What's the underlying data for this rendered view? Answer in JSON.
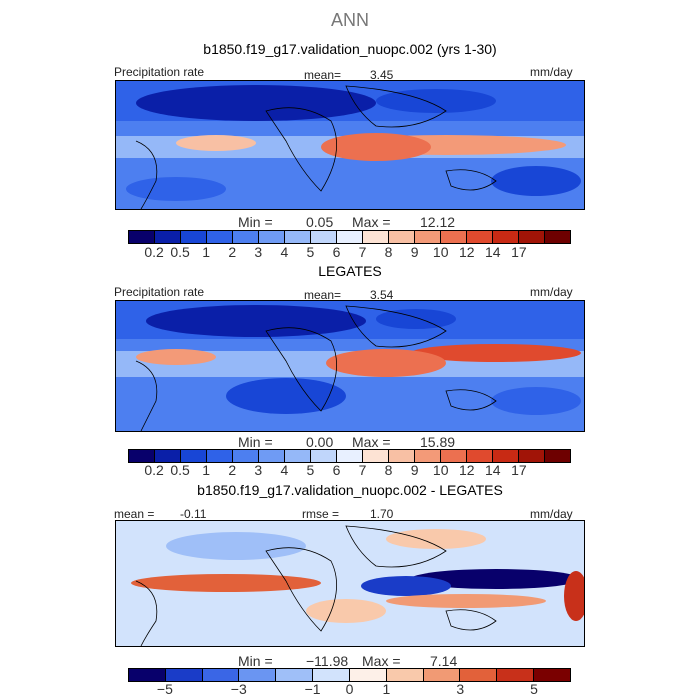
{
  "season": "ANN",
  "panels": [
    {
      "title": "b1850.f19_g17.validation_nuopc.002 (yrs 1-30)",
      "left_label": "Precipitation rate",
      "stat_label": "mean=",
      "stat_value": "3.45",
      "units": "mm/day",
      "min_label": "Min =",
      "min_value": "0.05",
      "max_label": "Max =",
      "max_value": "12.12"
    },
    {
      "title": "LEGATES",
      "left_label": "Precipitation rate",
      "stat_label": "mean=",
      "stat_value": "3.54",
      "units": "mm/day",
      "min_label": "Min =",
      "min_value": "0.00",
      "max_label": "Max =",
      "max_value": "15.89"
    },
    {
      "title": "b1850.f19_g17.validation_nuopc.002 - LEGATES",
      "mean_label": "mean =",
      "mean_value": "-0.11",
      "rmse_label": "rmse =",
      "rmse_value": "1.70",
      "units": "mm/day",
      "min_label": "Min =",
      "min_value": "−11.98",
      "max_label": "Max =",
      "max_value": "7.14"
    }
  ],
  "colorbar_abs": {
    "colors": [
      "#08006b",
      "#0a1fa8",
      "#1846d6",
      "#2f62e8",
      "#4d7ff0",
      "#6f9bf4",
      "#95b8f8",
      "#c0d6fb",
      "#e8f0ff",
      "#fde3d4",
      "#f8c0a4",
      "#f39a78",
      "#ec7050",
      "#e04a2e",
      "#c82a14",
      "#a11407",
      "#6e0000"
    ],
    "ticks": [
      "0.2",
      "0.5",
      "1",
      "2",
      "3",
      "4",
      "5",
      "6",
      "7",
      "8",
      "9",
      "10",
      "12",
      "14",
      "17"
    ]
  },
  "colorbar_diff": {
    "colors": [
      "#08006b",
      "#1a3cc8",
      "#3a66e6",
      "#6a95f2",
      "#9fbff8",
      "#d2e3fc",
      "#fdf0e8",
      "#f9c9ab",
      "#f19a74",
      "#e2613a",
      "#c8301a",
      "#7a0000"
    ],
    "ticks": [
      "−5",
      "−3",
      "−1",
      "0",
      "1",
      "3",
      "5"
    ]
  },
  "chart_data": [
    {
      "type": "heatmap",
      "title": "b1850.f19_g17.validation_nuopc.002 (yrs 1-30)",
      "variable": "Precipitation rate",
      "units": "mm/day",
      "mean": 3.45,
      "min": 0.05,
      "max": 12.12,
      "levels": [
        0.2,
        0.5,
        1,
        2,
        3,
        4,
        5,
        6,
        7,
        8,
        9,
        10,
        12,
        14,
        17
      ]
    },
    {
      "type": "heatmap",
      "title": "LEGATES",
      "variable": "Precipitation rate",
      "units": "mm/day",
      "mean": 3.54,
      "min": 0.0,
      "max": 15.89,
      "levels": [
        0.2,
        0.5,
        1,
        2,
        3,
        4,
        5,
        6,
        7,
        8,
        9,
        10,
        12,
        14,
        17
      ]
    },
    {
      "type": "heatmap",
      "title": "b1850.f19_g17.validation_nuopc.002 - LEGATES",
      "units": "mm/day",
      "mean": -0.11,
      "rmse": 1.7,
      "min": -11.98,
      "max": 7.14,
      "levels": [
        -5,
        -3,
        -1,
        0,
        1,
        3,
        5
      ]
    }
  ]
}
